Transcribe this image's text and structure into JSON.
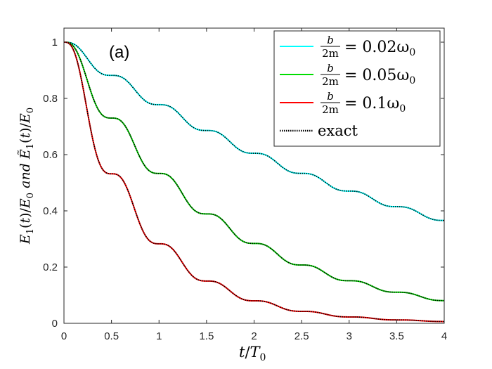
{
  "chart_data": {
    "type": "line",
    "panel_label": "(a)",
    "xlabel": "t/T0",
    "ylabel": "E1(t)/E0 and Ẽ1(t)/E0",
    "xlim": [
      0,
      4
    ],
    "ylim": [
      0,
      1.05
    ],
    "xticks": [
      0,
      0.5,
      1,
      1.5,
      2,
      2.5,
      3,
      3.5,
      4
    ],
    "xtick_labels": [
      "0",
      "0.5",
      "1",
      "1.5",
      "2",
      "2.5",
      "3",
      "3.5",
      "4"
    ],
    "yticks": [
      0,
      0.2,
      0.4,
      0.6,
      0.8,
      1
    ],
    "ytick_labels": [
      "0",
      "0.2",
      "0.4",
      "0.6",
      "0.8",
      "1"
    ],
    "grid": false,
    "legend_position": "top-right",
    "series": [
      {
        "name": "b/2m = 0.02ω0",
        "legend_text": "= 0.02ω",
        "color": "#00ffff",
        "style": "solid",
        "damping_ratio": 0.02,
        "values_at_half_periods": [
          1.0,
          0.882,
          0.778,
          0.686,
          0.605,
          0.534,
          0.471,
          0.415,
          0.366
        ]
      },
      {
        "name": "b/2m = 0.05ω0",
        "legend_text": "= 0.05ω",
        "color": "#00dd00",
        "style": "solid",
        "damping_ratio": 0.05,
        "values_at_half_periods": [
          1.0,
          0.73,
          0.533,
          0.389,
          0.284,
          0.208,
          0.151,
          0.111,
          0.081
        ]
      },
      {
        "name": "b/2m = 0.1ω0",
        "legend_text": "= 0.1ω",
        "color": "#ff0000",
        "style": "solid",
        "damping_ratio": 0.1,
        "values_at_half_periods": [
          1.0,
          0.533,
          0.284,
          0.151,
          0.081,
          0.043,
          0.023,
          0.012,
          0.007
        ]
      },
      {
        "name": "exact",
        "legend_text": "exact",
        "color": "#000000",
        "style": "dotted",
        "damping_ratio": null,
        "values_at_half_periods": null
      }
    ],
    "legend_fraction": {
      "numerator": "b",
      "denominator": "2m",
      "subscript": "0"
    }
  }
}
